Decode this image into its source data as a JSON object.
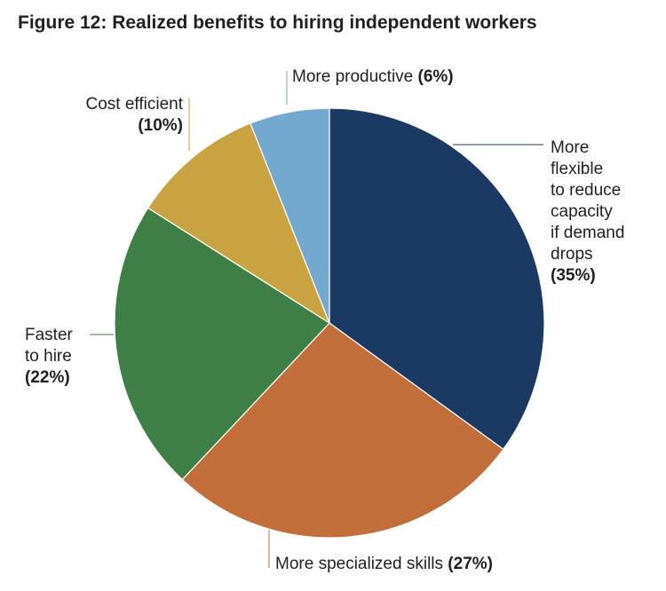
{
  "title": "Figure 12: Realized benefits to hiring independent workers",
  "chart_data": {
    "type": "pie",
    "title": "Figure 12: Realized benefits to hiring independent workers",
    "slices": [
      {
        "label_lines": [
          "More",
          "flexible",
          "to reduce",
          "capacity",
          "if demand",
          "drops"
        ],
        "pct_text": "(35%)",
        "value": 35,
        "color": "#1a3a63"
      },
      {
        "label_lines": [
          "More specialized skills"
        ],
        "pct_text": "(27%)",
        "value": 27,
        "color": "#c26e3a"
      },
      {
        "label_lines": [
          "Faster",
          "to hire"
        ],
        "pct_text": "(22%)",
        "value": 22,
        "color": "#3e7f46"
      },
      {
        "label_lines": [
          "Cost efficient"
        ],
        "pct_text": "(10%)",
        "value": 10,
        "color": "#c9a242"
      },
      {
        "label_lines": [
          "More productive"
        ],
        "pct_text": "(6%)",
        "value": 6,
        "color": "#74a9cf"
      }
    ]
  }
}
